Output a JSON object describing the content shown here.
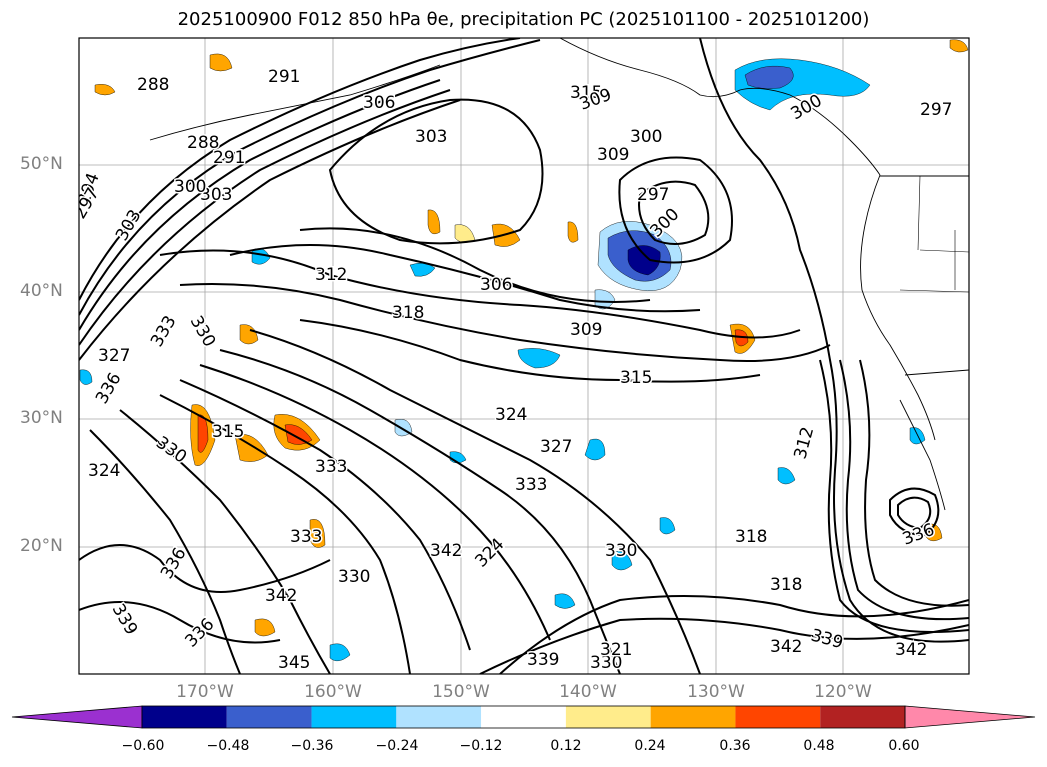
{
  "title": "2025100900 F012 850 hPa θe, precipitation PC (2025101100 - 2025101200)",
  "map": {
    "lat_labels": [
      "50°N",
      "40°N",
      "30°N",
      "20°N"
    ],
    "lon_labels": [
      "170°W",
      "160°W",
      "150°W",
      "140°W",
      "130°W",
      "120°W"
    ],
    "contour_labels": [
      "288",
      "291",
      "294",
      "297",
      "300",
      "303",
      "306",
      "309",
      "312",
      "315",
      "318",
      "321",
      "324",
      "327",
      "330",
      "333",
      "336",
      "339",
      "342",
      "345"
    ],
    "contour_label_instances": [
      "288",
      "291",
      "306",
      "315",
      "309",
      "303",
      "300",
      "309",
      "297",
      "288",
      "291",
      "303",
      "294",
      "297",
      "303",
      "300",
      "297",
      "300",
      "300",
      "312",
      "306",
      "318",
      "309",
      "315",
      "327",
      "333",
      "336",
      "330",
      "315",
      "330",
      "324",
      "333",
      "324",
      "327",
      "333",
      "336",
      "330",
      "318",
      "333",
      "339",
      "336",
      "342",
      "330",
      "330",
      "324",
      "321",
      "318",
      "345",
      "339",
      "339",
      "342",
      "342",
      "336",
      "342",
      "312"
    ],
    "colors": {
      "contour": "#000000",
      "grid": "#808080",
      "coast": "#000000"
    }
  },
  "colorbar": {
    "ticks": [
      "−0.60",
      "−0.48",
      "−0.36",
      "−0.24",
      "−0.12",
      "0.12",
      "0.24",
      "0.36",
      "0.48",
      "0.60"
    ],
    "bins": [
      {
        "range": "< -0.60",
        "color": "#9b30d0"
      },
      {
        "range": "-0.60 to -0.48",
        "color": "#00008b"
      },
      {
        "range": "-0.48 to -0.36",
        "color": "#3a5fcd"
      },
      {
        "range": "-0.36 to -0.24",
        "color": "#00bfff"
      },
      {
        "range": "-0.24 to -0.12",
        "color": "#b0e2ff"
      },
      {
        "range": "-0.12 to 0.12",
        "color": "#ffffff"
      },
      {
        "range": "0.12 to 0.24",
        "color": "#ffec8b"
      },
      {
        "range": "0.24 to 0.36",
        "color": "#ffa500"
      },
      {
        "range": "0.36 to 0.48",
        "color": "#ff4500"
      },
      {
        "range": "0.48 to 0.60",
        "color": "#b22222"
      },
      {
        "range": "> 0.60",
        "color": "#ff88aa"
      }
    ]
  }
}
